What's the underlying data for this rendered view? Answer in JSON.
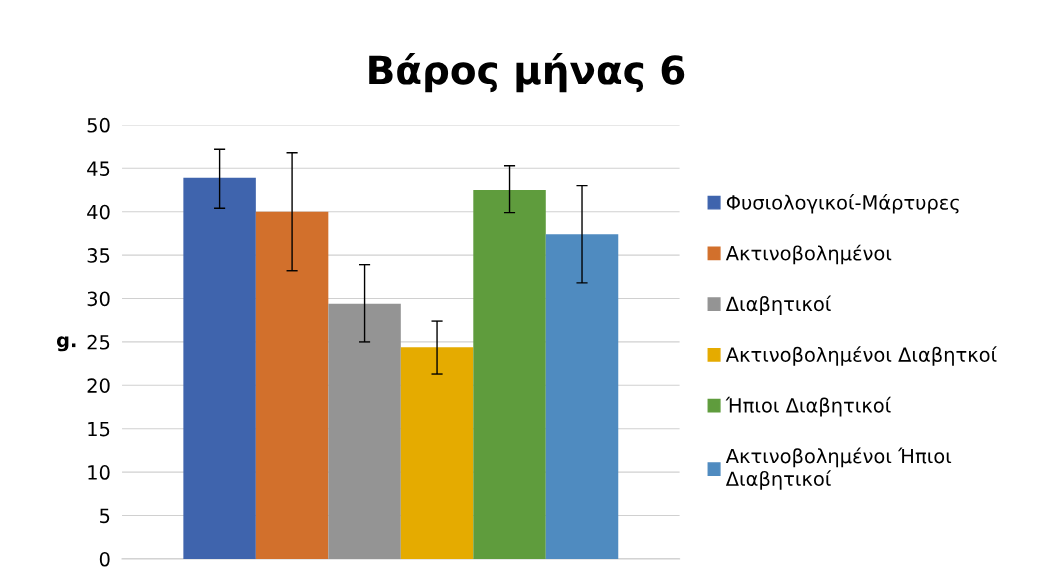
{
  "chart_data": {
    "type": "bar",
    "title": "Βάρος μήνας 6",
    "ylabel": "g.",
    "categories": [
      null
    ],
    "series": [
      {
        "name": "Φυσιολογικοί-Μάρτυρες",
        "color": "#3f64ad",
        "values": [
          43.9
        ],
        "errors": [
          [
            40.4,
            47.2
          ]
        ]
      },
      {
        "name": "Ακτινοβολημένοι",
        "color": "#d2702c",
        "values": [
          40.0
        ],
        "errors": [
          [
            33.2,
            46.8
          ]
        ]
      },
      {
        "name": "Διαβητικοί",
        "color": "#949494",
        "values": [
          29.4
        ],
        "errors": [
          [
            25.0,
            33.9
          ]
        ]
      },
      {
        "name": "Ακτινοβολημένοι Διαβητκοί",
        "color": "#e5ab00",
        "values": [
          24.4
        ],
        "errors": [
          [
            21.3,
            27.4
          ]
        ]
      },
      {
        "name": "Ήπιοι Διαβητικοί",
        "color": "#5f9c3d",
        "values": [
          42.5
        ],
        "errors": [
          [
            39.9,
            45.3
          ]
        ]
      },
      {
        "name": "Ακτινοβολημένοι Ήπιοι Διαβητικοί",
        "color": "#4f8bc0",
        "values": [
          37.4
        ],
        "errors": [
          [
            31.8,
            43.0
          ]
        ]
      }
    ],
    "ylim": [
      0,
      50
    ],
    "yticks": [
      0,
      5,
      10,
      15,
      20,
      25,
      30,
      35,
      40,
      45,
      50
    ],
    "grid": "y",
    "legend": "right"
  }
}
